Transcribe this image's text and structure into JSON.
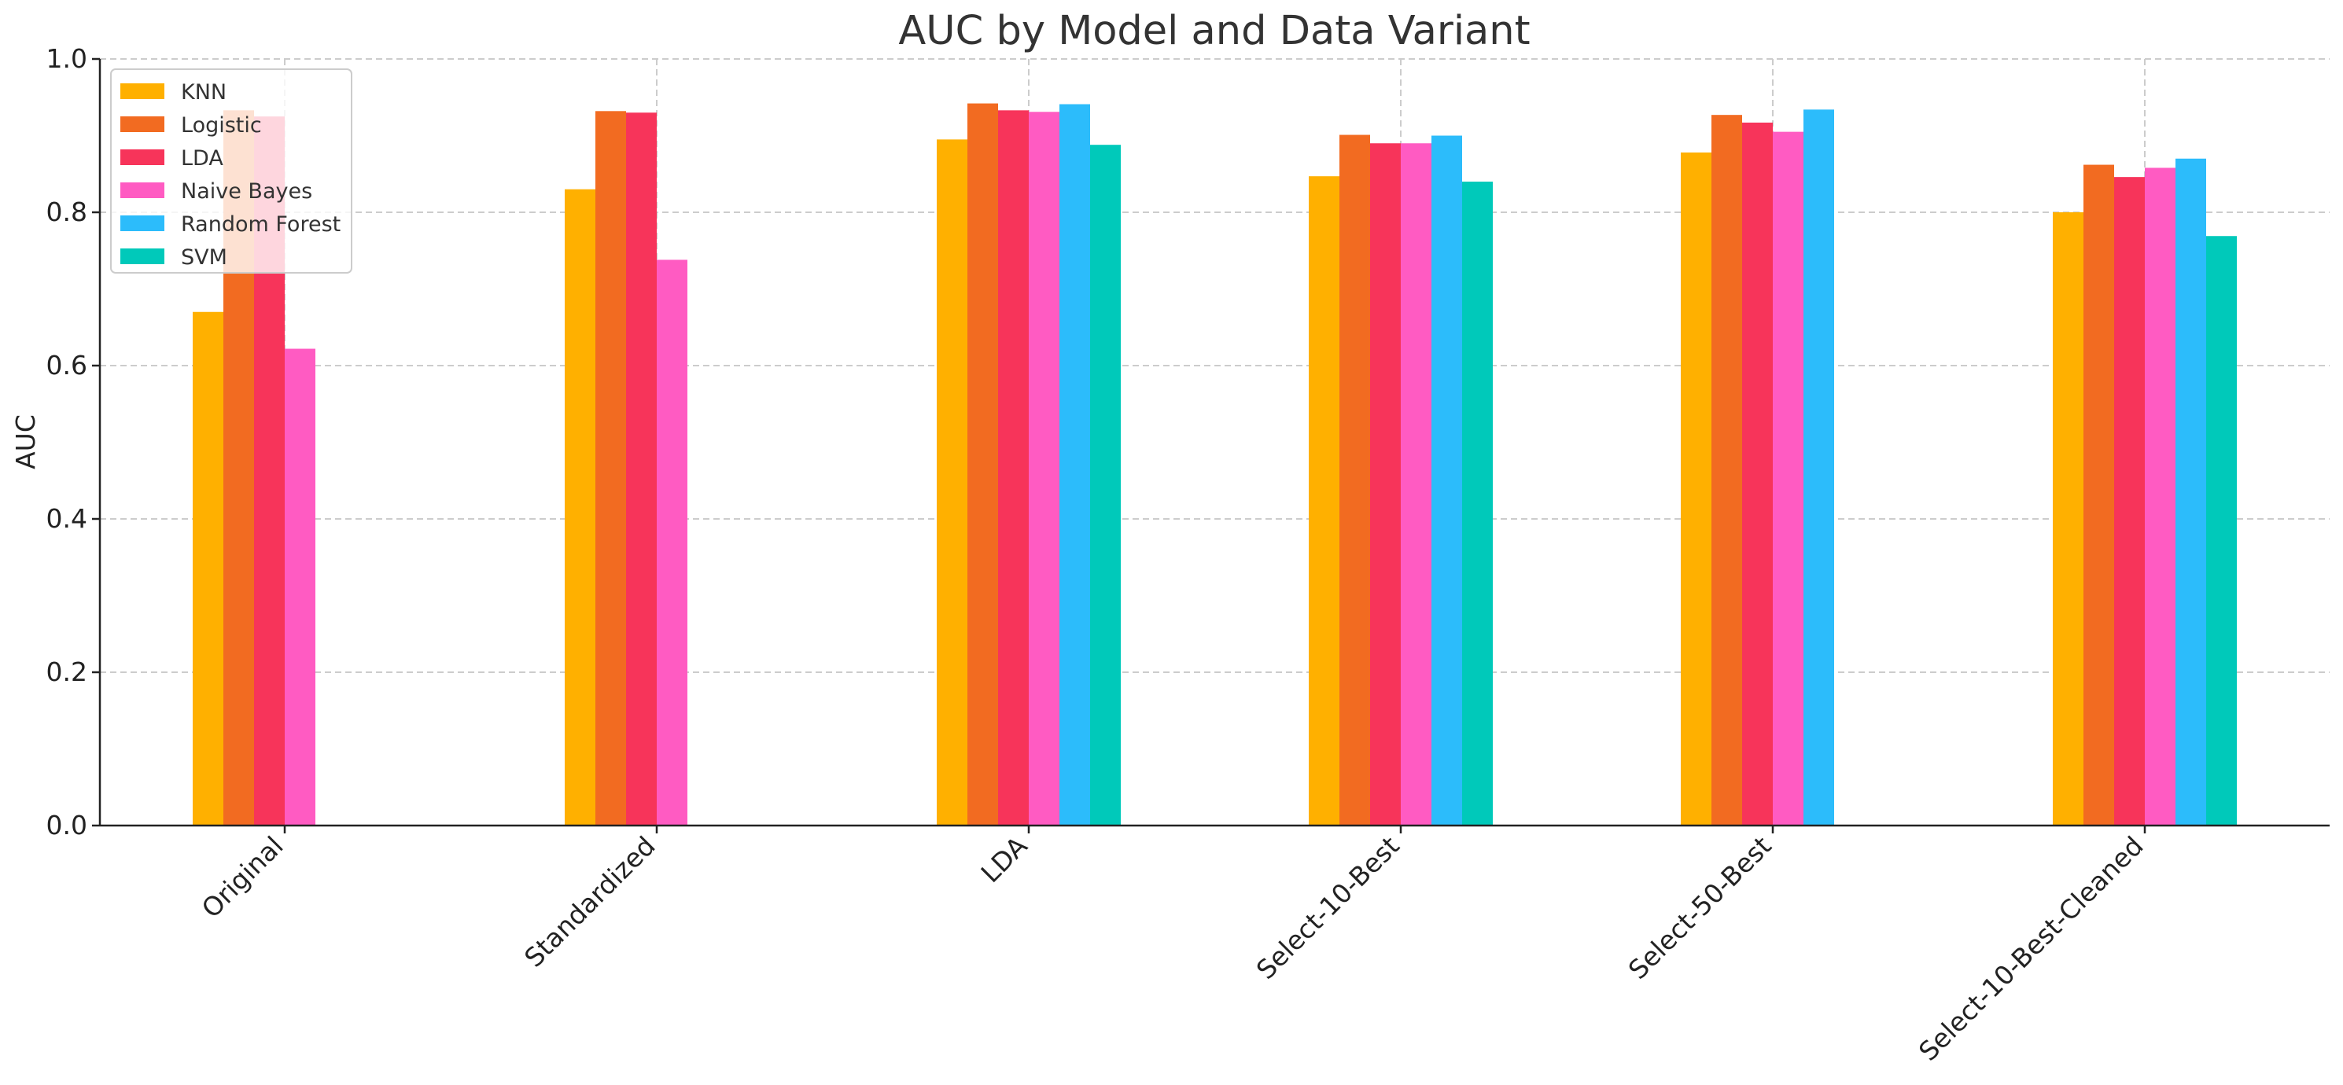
{
  "chart_data": {
    "type": "bar",
    "title": "AUC by Model and Data Variant",
    "xlabel": "",
    "ylabel": "AUC",
    "ylim": [
      0,
      1.0
    ],
    "yticks": [
      "0.0",
      "0.2",
      "0.4",
      "0.6",
      "0.8",
      "1.0"
    ],
    "grid": true,
    "legend_position": "top-left",
    "categories": [
      "Original",
      "Standardized",
      "LDA",
      "Select-10-Best",
      "Select-50-Best",
      "Select-10-Best-Cleaned"
    ],
    "series": [
      {
        "name": "KNN",
        "color": "#FFB000",
        "values": [
          0.67,
          0.83,
          0.895,
          0.847,
          0.878,
          0.8
        ]
      },
      {
        "name": "Logistic",
        "color": "#F26B21",
        "values": [
          0.933,
          0.932,
          0.942,
          0.901,
          0.927,
          0.862
        ]
      },
      {
        "name": "LDA",
        "color": "#F7345A",
        "values": [
          0.925,
          0.93,
          0.933,
          0.89,
          0.917,
          0.846
        ]
      },
      {
        "name": "Naive Bayes",
        "color": "#FF5BC2",
        "values": [
          0.622,
          0.738,
          0.931,
          0.89,
          0.905,
          0.858
        ]
      },
      {
        "name": "Random Forest",
        "color": "#2CBCFB",
        "values": [
          null,
          null,
          0.941,
          0.9,
          0.934,
          0.87
        ]
      },
      {
        "name": "SVM",
        "color": "#00C9BA",
        "values": [
          null,
          null,
          0.888,
          0.84,
          null,
          0.769
        ]
      }
    ]
  }
}
